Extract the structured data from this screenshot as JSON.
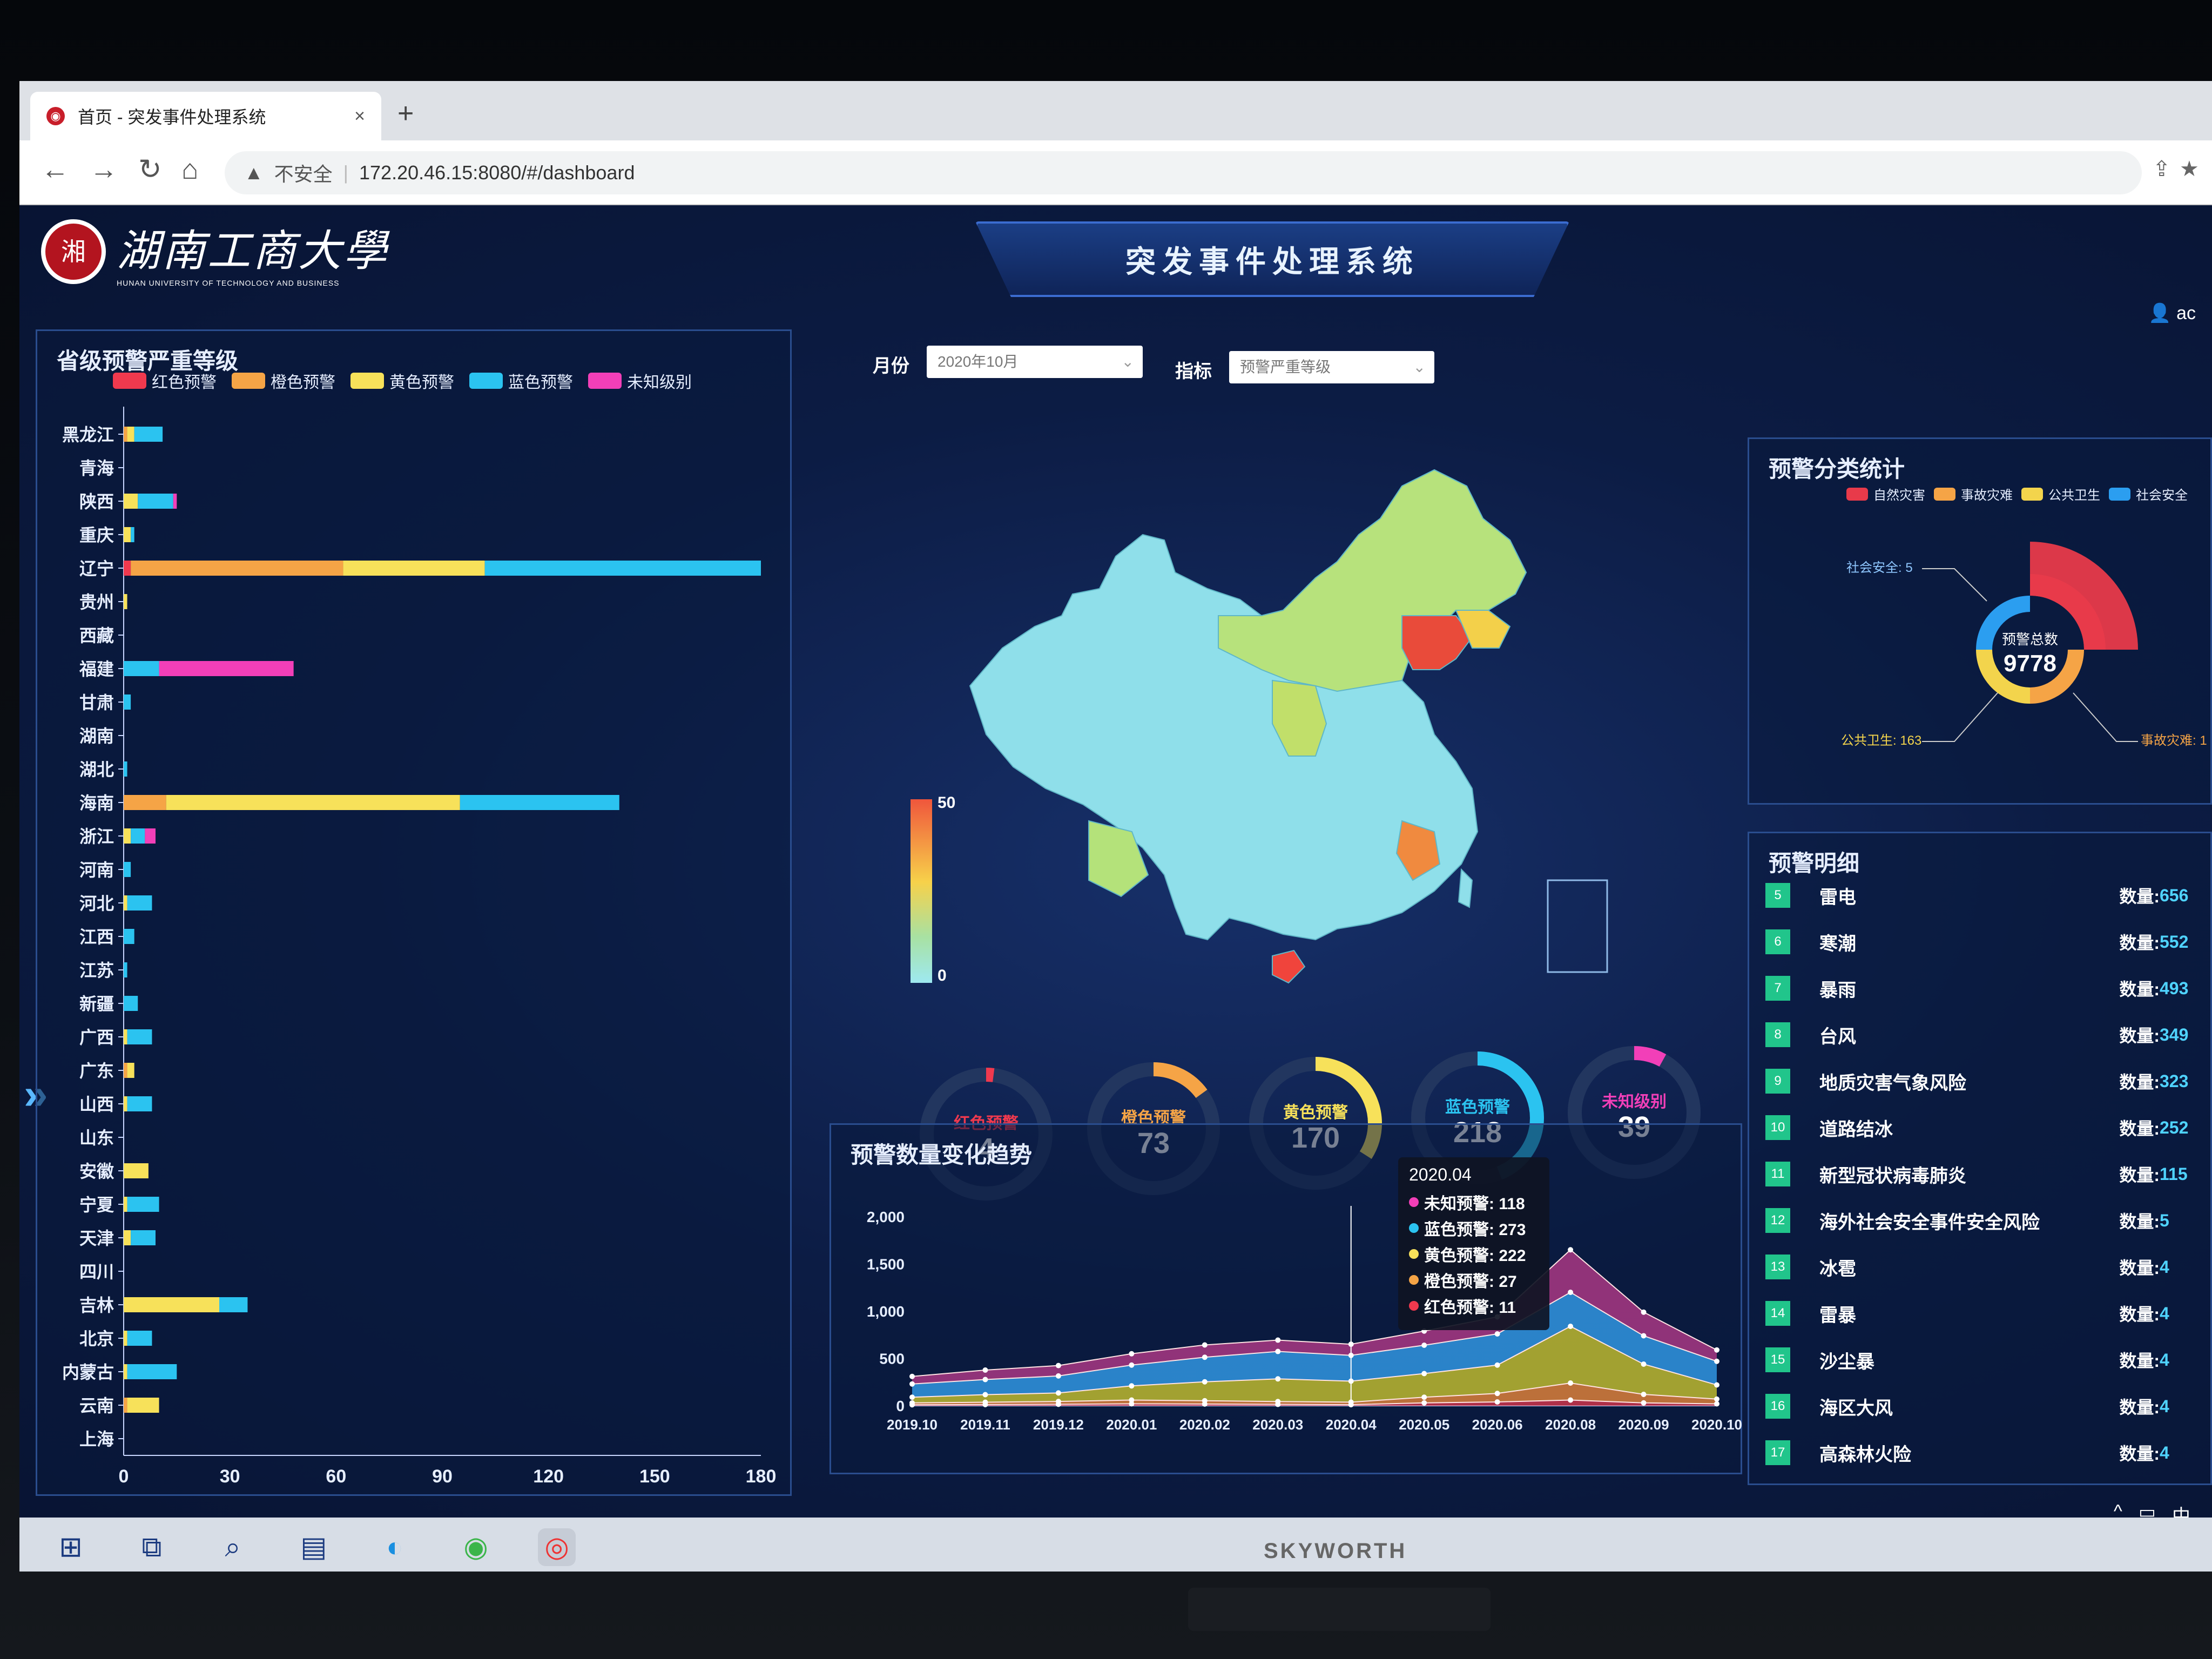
{
  "browser": {
    "tab_title": "首页 - 突发事件处理系统",
    "tab_close": "×",
    "new_tab": "+",
    "back": "←",
    "forward": "→",
    "reload": "↻",
    "home": "⌂",
    "security_icon": "▲",
    "security_text": "不安全",
    "separator": "|",
    "url": "172.20.46.15:8080/#/dashboard"
  },
  "header": {
    "logo_text": "湖南工商大學",
    "logo_sub": "HUNAN UNIVERSITY OF TECHNOLOGY AND BUSINESS",
    "system_title": "突发事件处理系统",
    "user": "ac"
  },
  "filters": {
    "month_label": "月份",
    "month_value": "2020年10月",
    "indicator_label": "指标",
    "indicator_value": "预警严重等级"
  },
  "province_panel": {
    "title": "省级预警严重等级",
    "legend": [
      {
        "label": "红色预警",
        "color": "#f0394e"
      },
      {
        "label": "橙色预警",
        "color": "#f5a446"
      },
      {
        "label": "黄色预警",
        "color": "#f7e15a"
      },
      {
        "label": "蓝色预警",
        "color": "#2bc3f0"
      },
      {
        "label": "未知级别",
        "color": "#f23fb8"
      }
    ]
  },
  "chart_data": [
    {
      "type": "bar",
      "orientation": "horizontal",
      "stacked": true,
      "title": "省级预警严重等级",
      "categories": [
        "黑龙江",
        "青海",
        "陕西",
        "重庆",
        "辽宁",
        "贵州",
        "西藏",
        "福建",
        "甘肃",
        "湖南",
        "湖北",
        "海南",
        "浙江",
        "河南",
        "河北",
        "江西",
        "江苏",
        "新疆",
        "广西",
        "广东",
        "山西",
        "山东",
        "安徽",
        "宁夏",
        "天津",
        "四川",
        "吉林",
        "北京",
        "内蒙古",
        "云南",
        "上海"
      ],
      "series": [
        {
          "name": "红色预警",
          "values": [
            0,
            0,
            0,
            0,
            2,
            0,
            0,
            0,
            0,
            0,
            0,
            0,
            0,
            0,
            0,
            0,
            0,
            0,
            0,
            0,
            0,
            0,
            0,
            0,
            0,
            0,
            0,
            0,
            0,
            0,
            0
          ]
        },
        {
          "name": "橙色预警",
          "values": [
            1,
            0,
            0,
            0,
            60,
            0,
            0,
            0,
            0,
            0,
            0,
            12,
            0,
            0,
            0,
            0,
            0,
            0,
            0,
            1,
            0,
            0,
            0,
            0,
            0,
            0,
            0,
            0,
            0,
            1,
            0
          ]
        },
        {
          "name": "黄色预警",
          "values": [
            2,
            0,
            4,
            2,
            40,
            1,
            0,
            0,
            0,
            0,
            0,
            83,
            2,
            0,
            1,
            0,
            0,
            0,
            1,
            2,
            1,
            0,
            7,
            1,
            2,
            0,
            27,
            1,
            1,
            9,
            0
          ]
        },
        {
          "name": "蓝色预警",
          "values": [
            8,
            0,
            10,
            1,
            78,
            0,
            0,
            10,
            2,
            0,
            1,
            45,
            4,
            2,
            7,
            3,
            1,
            4,
            7,
            0,
            7,
            0,
            0,
            9,
            7,
            0,
            8,
            7,
            14,
            0,
            0
          ]
        },
        {
          "name": "未知级别",
          "values": [
            0,
            0,
            1,
            0,
            0,
            0,
            0,
            38,
            0,
            0,
            0,
            0,
            3,
            0,
            0,
            0,
            0,
            0,
            0,
            0,
            0,
            0,
            0,
            0,
            0,
            0,
            0,
            0,
            0,
            0,
            0
          ]
        }
      ],
      "xticks": [
        0,
        30,
        60,
        90,
        120,
        150,
        180
      ],
      "xlim": [
        0,
        180
      ]
    },
    {
      "type": "pie",
      "title": "预警分类统计",
      "center_label": "预警总数",
      "center_value": 9778,
      "legend": [
        "自然灾害",
        "事故灾难",
        "公共卫生",
        "社会安全"
      ],
      "labels": [
        "社会安全: 5",
        "公共卫生: 163",
        "事故灾难: 1"
      ],
      "colors": [
        "#e83a4a",
        "#f5a446",
        "#f3d44c",
        "#2b9ef0"
      ]
    },
    {
      "type": "area",
      "stacked": true,
      "title": "预警数量变化趋势",
      "x": [
        "2019.10",
        "2019.11",
        "2019.12",
        "2020.01",
        "2020.02",
        "2020.03",
        "2020.04",
        "2020.05",
        "2020.06",
        "2020.08",
        "2020.09",
        "2020.10"
      ],
      "ylim": [
        0,
        2000
      ],
      "yticks": [
        "0",
        "500",
        "1,000",
        "1,500",
        "2,000"
      ],
      "series": [
        {
          "name": "红色预警",
          "values": [
            10,
            12,
            15,
            20,
            18,
            14,
            11,
            30,
            40,
            60,
            30,
            20
          ]
        },
        {
          "name": "橙色预警",
          "values": [
            20,
            25,
            30,
            40,
            35,
            30,
            27,
            60,
            90,
            180,
            90,
            50
          ]
        },
        {
          "name": "黄色预警",
          "values": [
            60,
            80,
            90,
            150,
            200,
            240,
            222,
            250,
            300,
            600,
            320,
            150
          ]
        },
        {
          "name": "蓝色预警",
          "values": [
            140,
            160,
            180,
            220,
            260,
            290,
            273,
            300,
            330,
            360,
            300,
            250
          ]
        },
        {
          "name": "未知预警",
          "values": [
            80,
            100,
            110,
            120,
            130,
            120,
            118,
            150,
            180,
            450,
            250,
            120
          ]
        }
      ],
      "tooltip": {
        "title": "2020.04",
        "rows": [
          {
            "label": "未知预警: 118",
            "color": "#f23fb8"
          },
          {
            "label": "蓝色预警: 273",
            "color": "#2bc3f0"
          },
          {
            "label": "黄色预警: 222",
            "color": "#f7e15a"
          },
          {
            "label": "橙色预警: 27",
            "color": "#f5a446"
          },
          {
            "label": "红色预警: 11",
            "color": "#f0394e"
          }
        ]
      }
    }
  ],
  "map": {
    "scale_max": "50",
    "scale_min": "0"
  },
  "gauges": [
    {
      "label": "红色预警",
      "value": "4",
      "ratio": 0.02,
      "color": "#f0394e"
    },
    {
      "label": "橙色预警",
      "value": "73",
      "ratio": 0.15,
      "color": "#f5a446"
    },
    {
      "label": "黄色预警",
      "value": "170",
      "ratio": 0.34,
      "color": "#f7e15a"
    },
    {
      "label": "蓝色预警",
      "value": "218",
      "ratio": 0.44,
      "color": "#2bc3f0"
    },
    {
      "label": "未知级别",
      "value": "39",
      "ratio": 0.08,
      "color": "#f23fb8"
    }
  ],
  "category_panel": {
    "title": "预警分类统计",
    "legend": [
      {
        "label": "自然灾害",
        "color": "#e83a4a"
      },
      {
        "label": "事故灾难",
        "color": "#f5a446"
      },
      {
        "label": "公共卫生",
        "color": "#f3d44c"
      },
      {
        "label": "社会安全",
        "color": "#2b9ef0"
      }
    ],
    "center_label": "预警总数",
    "center_value": "9778",
    "label_social": "社会安全: 5",
    "label_health": "公共卫生: 163",
    "label_accident": "事故灾难: 1"
  },
  "detail_panel": {
    "title": "预警明细",
    "qty_label": "数量:",
    "items": [
      {
        "num": "5",
        "name": "雷电",
        "qty": "656"
      },
      {
        "num": "6",
        "name": "寒潮",
        "qty": "552"
      },
      {
        "num": "7",
        "name": "暴雨",
        "qty": "493"
      },
      {
        "num": "8",
        "name": "台风",
        "qty": "349"
      },
      {
        "num": "9",
        "name": "地质灾害气象风险",
        "qty": "323"
      },
      {
        "num": "10",
        "name": "道路结冰",
        "qty": "252"
      },
      {
        "num": "11",
        "name": "新型冠状病毒肺炎",
        "qty": "115"
      },
      {
        "num": "12",
        "name": "海外社会安全事件安全风险",
        "qty": "5"
      },
      {
        "num": "13",
        "name": "冰雹",
        "qty": "4"
      },
      {
        "num": "14",
        "name": "雷暴",
        "qty": "4"
      },
      {
        "num": "15",
        "name": "沙尘暴",
        "qty": "4"
      },
      {
        "num": "16",
        "name": "海区大风",
        "qty": "4"
      },
      {
        "num": "17",
        "name": "高森林火险",
        "qty": "4"
      }
    ]
  },
  "trend_panel": {
    "title": "预警数量变化趋势"
  },
  "taskbar": {
    "icons": [
      "windows-icon",
      "task-view-icon",
      "search-icon",
      "app-icon",
      "edge-icon",
      "ie-icon",
      "chrome-icon"
    ]
  },
  "tray": {
    "ime": "中",
    "chevron": "^"
  },
  "monitor": {
    "brand": "SKYWORTH"
  }
}
